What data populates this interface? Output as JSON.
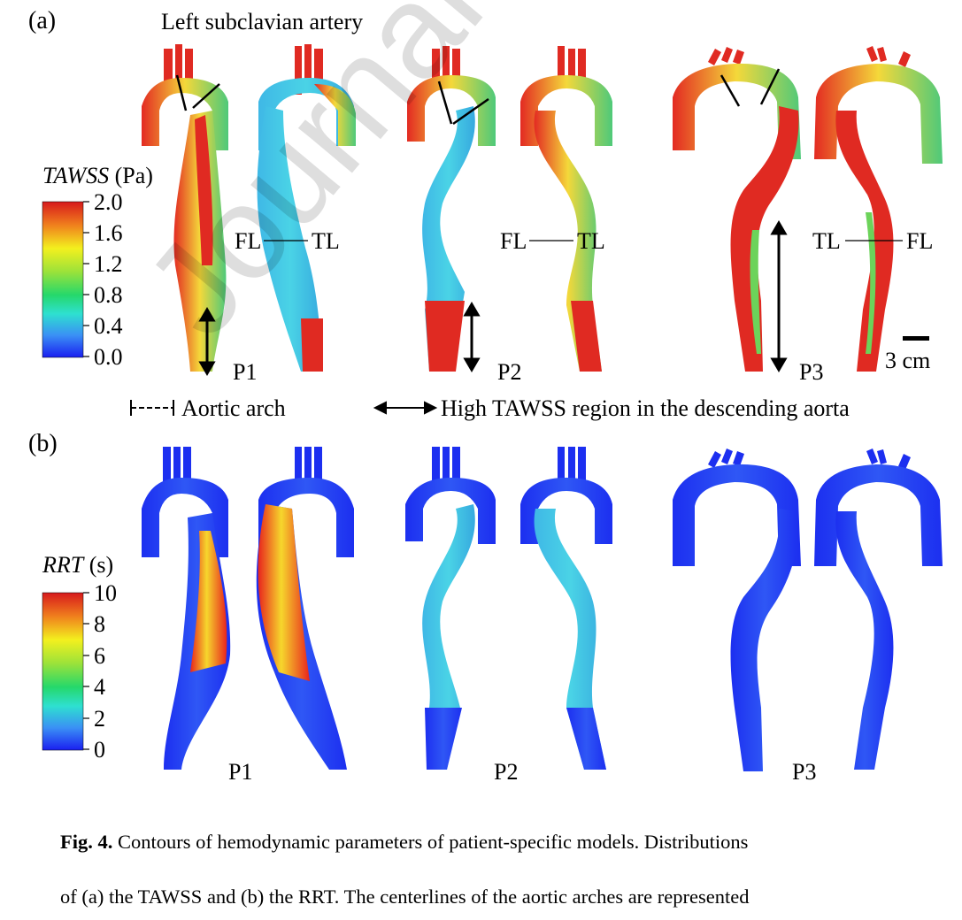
{
  "panel_a": {
    "label": "(a)",
    "annotation": "Left subclavian artery",
    "colorbar": {
      "title_var": "TAWSS",
      "title_unit": "(Pa)",
      "ticks": [
        "2.0",
        "1.6",
        "1.2",
        "0.8",
        "0.4",
        "0.0"
      ],
      "colors": [
        "#d7191c",
        "#f07f1d",
        "#f3f01e",
        "#9be23a",
        "#25d86b",
        "#2ee0d0",
        "#3a8ff5",
        "#1a1ff0"
      ]
    },
    "patients": [
      "P1",
      "P2",
      "P3"
    ],
    "lumen_labels": {
      "p1": [
        "FL",
        "TL"
      ],
      "p2": [
        "FL",
        "TL"
      ],
      "p3": [
        "TL",
        "FL"
      ]
    },
    "scale_bar": "3 cm",
    "legend": {
      "arch": "Aortic arch",
      "high": "High TAWSS region in the descending aorta"
    }
  },
  "panel_b": {
    "label": "(b)",
    "colorbar": {
      "title_var": "RRT",
      "title_unit": "(s)",
      "ticks": [
        "10",
        "8",
        "6",
        "4",
        "2",
        "0"
      ]
    },
    "patients": [
      "P1",
      "P2",
      "P3"
    ]
  },
  "caption": {
    "fig": "Fig. 4.",
    "line1": " Contours of hemodynamic parameters of patient-specific models. Distributions",
    "line2": "of (a) the TAWSS and (b) the RRT. The centerlines of the aortic arches are represented"
  },
  "watermark": "Journal Pre-proof"
}
